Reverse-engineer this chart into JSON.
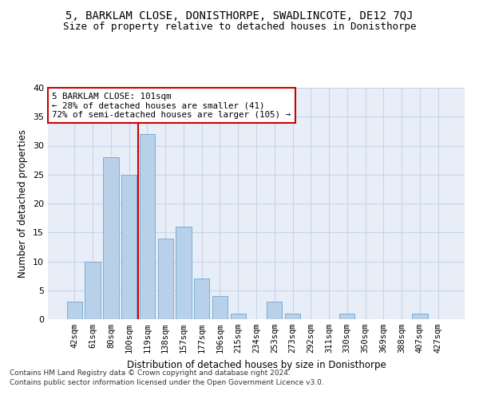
{
  "title1": "5, BARKLAM CLOSE, DONISTHORPE, SWADLINCOTE, DE12 7QJ",
  "title2": "Size of property relative to detached houses in Donisthorpe",
  "xlabel": "Distribution of detached houses by size in Donisthorpe",
  "ylabel": "Number of detached properties",
  "categories": [
    "42sqm",
    "61sqm",
    "80sqm",
    "100sqm",
    "119sqm",
    "138sqm",
    "157sqm",
    "177sqm",
    "196sqm",
    "215sqm",
    "234sqm",
    "253sqm",
    "273sqm",
    "292sqm",
    "311sqm",
    "330sqm",
    "350sqm",
    "369sqm",
    "388sqm",
    "407sqm",
    "427sqm"
  ],
  "values": [
    3,
    10,
    28,
    25,
    32,
    14,
    16,
    7,
    4,
    1,
    0,
    3,
    1,
    0,
    0,
    1,
    0,
    0,
    0,
    1,
    0
  ],
  "bar_color": "#b8d0e8",
  "bar_edge_color": "#7aafd4",
  "vline_color": "#cc0000",
  "annotation_text": "5 BARKLAM CLOSE: 101sqm\n← 28% of detached houses are smaller (41)\n72% of semi-detached houses are larger (105) →",
  "annotation_box_color": "white",
  "annotation_box_edge_color": "#cc0000",
  "ylim": [
    0,
    40
  ],
  "yticks": [
    0,
    5,
    10,
    15,
    20,
    25,
    30,
    35,
    40
  ],
  "grid_color": "#c8d4e8",
  "background_color": "#e8eef8",
  "footer1": "Contains HM Land Registry data © Crown copyright and database right 2024.",
  "footer2": "Contains public sector information licensed under the Open Government Licence v3.0."
}
